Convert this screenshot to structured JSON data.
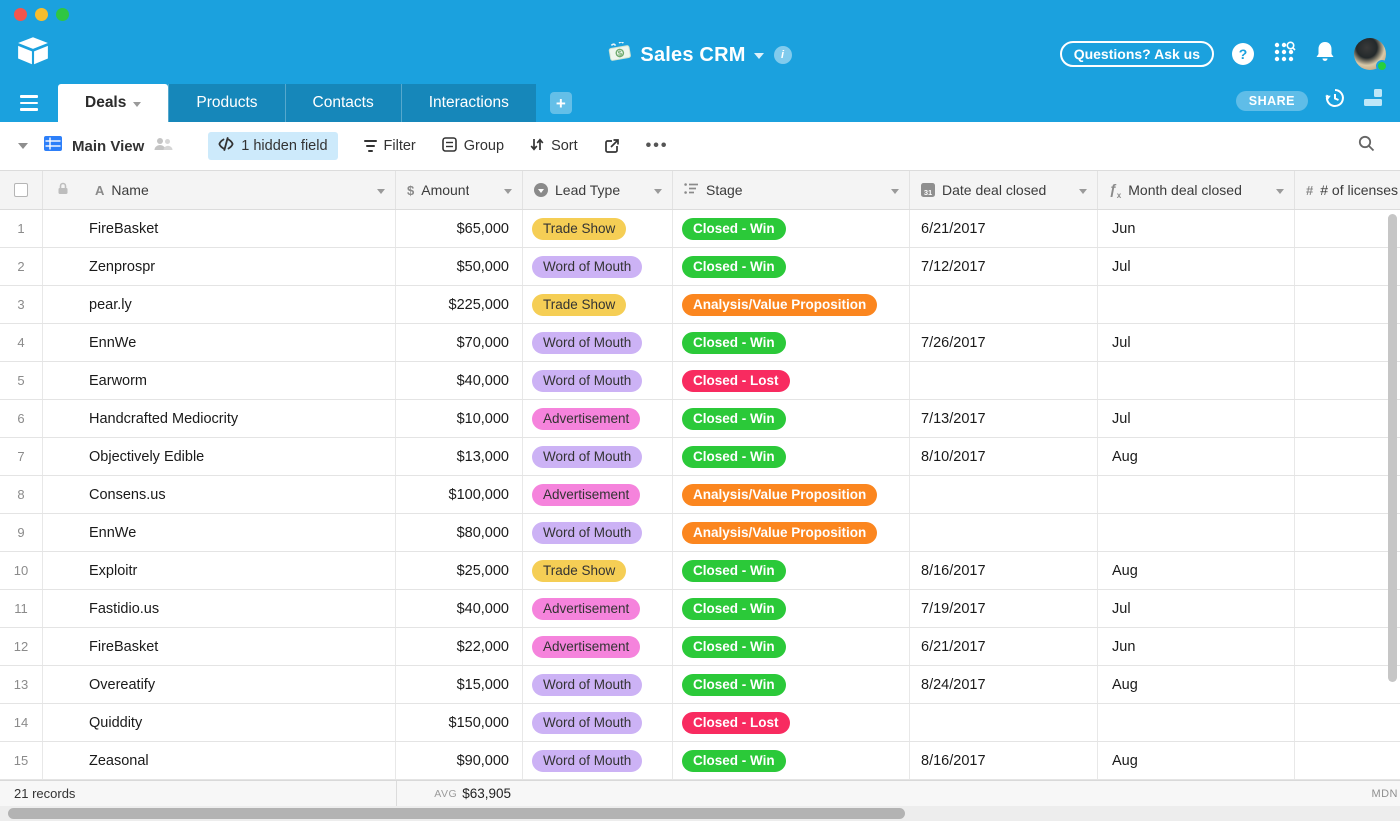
{
  "header": {
    "base_title": "Sales CRM",
    "questions_label": "Questions? Ask us"
  },
  "tabs": {
    "items": [
      {
        "label": "Deals",
        "active": true
      },
      {
        "label": "Products",
        "active": false
      },
      {
        "label": "Contacts",
        "active": false
      },
      {
        "label": "Interactions",
        "active": false
      }
    ],
    "share_label": "SHARE"
  },
  "toolbar": {
    "view_name": "Main View",
    "hidden_field_label": "1 hidden field",
    "filter_label": "Filter",
    "group_label": "Group",
    "sort_label": "Sort"
  },
  "grid": {
    "columns": [
      {
        "name": "Name",
        "type": "text"
      },
      {
        "name": "Amount",
        "type": "currency"
      },
      {
        "name": "Lead Type",
        "type": "single-select"
      },
      {
        "name": "Stage",
        "type": "single-select"
      },
      {
        "name": "Date deal closed",
        "type": "date"
      },
      {
        "name": "Month deal closed",
        "type": "formula"
      },
      {
        "name": "# of licenses",
        "type": "number"
      }
    ],
    "calendar_icon_text": "31",
    "badge_colors": {
      "Trade Show": {
        "bg": "#f5ce55",
        "fg": "#333333",
        "bold": false
      },
      "Word of Mouth": {
        "bg": "#ccb2f5",
        "fg": "#333333",
        "bold": false
      },
      "Advertisement": {
        "bg": "#f583dc",
        "fg": "#333333",
        "bold": false
      },
      "Closed - Win": {
        "bg": "#2bc939",
        "fg": "#ffffff",
        "bold": true
      },
      "Closed - Lost": {
        "bg": "#f82b60",
        "fg": "#ffffff",
        "bold": true
      },
      "Analysis/Value Proposition": {
        "bg": "#fb861f",
        "fg": "#ffffff",
        "bold": true
      }
    },
    "rows": [
      {
        "num": "1",
        "name": "FireBasket",
        "amount": "$65,000",
        "lead_type": "Trade Show",
        "stage": "Closed - Win",
        "date": "6/21/2017",
        "month": "Jun",
        "licenses": ""
      },
      {
        "num": "2",
        "name": "Zenprospr",
        "amount": "$50,000",
        "lead_type": "Word of Mouth",
        "stage": "Closed - Win",
        "date": "7/12/2017",
        "month": "Jul",
        "licenses": ""
      },
      {
        "num": "3",
        "name": "pear.ly",
        "amount": "$225,000",
        "lead_type": "Trade Show",
        "stage": "Analysis/Value Proposition",
        "date": "",
        "month": "",
        "licenses": ""
      },
      {
        "num": "4",
        "name": "EnnWe",
        "amount": "$70,000",
        "lead_type": "Word of Mouth",
        "stage": "Closed - Win",
        "date": "7/26/2017",
        "month": "Jul",
        "licenses": ""
      },
      {
        "num": "5",
        "name": "Earworm",
        "amount": "$40,000",
        "lead_type": "Word of Mouth",
        "stage": "Closed - Lost",
        "date": "",
        "month": "",
        "licenses": ""
      },
      {
        "num": "6",
        "name": "Handcrafted Mediocrity",
        "amount": "$10,000",
        "lead_type": "Advertisement",
        "stage": "Closed - Win",
        "date": "7/13/2017",
        "month": "Jul",
        "licenses": ""
      },
      {
        "num": "7",
        "name": "Objectively Edible",
        "amount": "$13,000",
        "lead_type": "Word of Mouth",
        "stage": "Closed - Win",
        "date": "8/10/2017",
        "month": "Aug",
        "licenses": ""
      },
      {
        "num": "8",
        "name": "Consens.us",
        "amount": "$100,000",
        "lead_type": "Advertisement",
        "stage": "Analysis/Value Proposition",
        "date": "",
        "month": "",
        "licenses": ""
      },
      {
        "num": "9",
        "name": "EnnWe",
        "amount": "$80,000",
        "lead_type": "Word of Mouth",
        "stage": "Analysis/Value Proposition",
        "date": "",
        "month": "",
        "licenses": ""
      },
      {
        "num": "10",
        "name": "Exploitr",
        "amount": "$25,000",
        "lead_type": "Trade Show",
        "stage": "Closed - Win",
        "date": "8/16/2017",
        "month": "Aug",
        "licenses": ""
      },
      {
        "num": "11",
        "name": "Fastidio.us",
        "amount": "$40,000",
        "lead_type": "Advertisement",
        "stage": "Closed - Win",
        "date": "7/19/2017",
        "month": "Jul",
        "licenses": ""
      },
      {
        "num": "12",
        "name": "FireBasket",
        "amount": "$22,000",
        "lead_type": "Advertisement",
        "stage": "Closed - Win",
        "date": "6/21/2017",
        "month": "Jun",
        "licenses": ""
      },
      {
        "num": "13",
        "name": "Overeatify",
        "amount": "$15,000",
        "lead_type": "Word of Mouth",
        "stage": "Closed - Win",
        "date": "8/24/2017",
        "month": "Aug",
        "licenses": ""
      },
      {
        "num": "14",
        "name": "Quiddity",
        "amount": "$150,000",
        "lead_type": "Word of Mouth",
        "stage": "Closed - Lost",
        "date": "",
        "month": "",
        "licenses": ""
      },
      {
        "num": "15",
        "name": "Zeasonal",
        "amount": "$90,000",
        "lead_type": "Word of Mouth",
        "stage": "Closed - Win",
        "date": "8/16/2017",
        "month": "Aug",
        "licenses": ""
      }
    ]
  },
  "footer": {
    "record_count": "21 records",
    "avg_label": "AVG",
    "avg_value": "$63,905",
    "mdn_label": "MDN"
  },
  "theme": {
    "accent_cyan": "#1ba1de",
    "grid_view_icon_blue": "#2d7ff9"
  }
}
